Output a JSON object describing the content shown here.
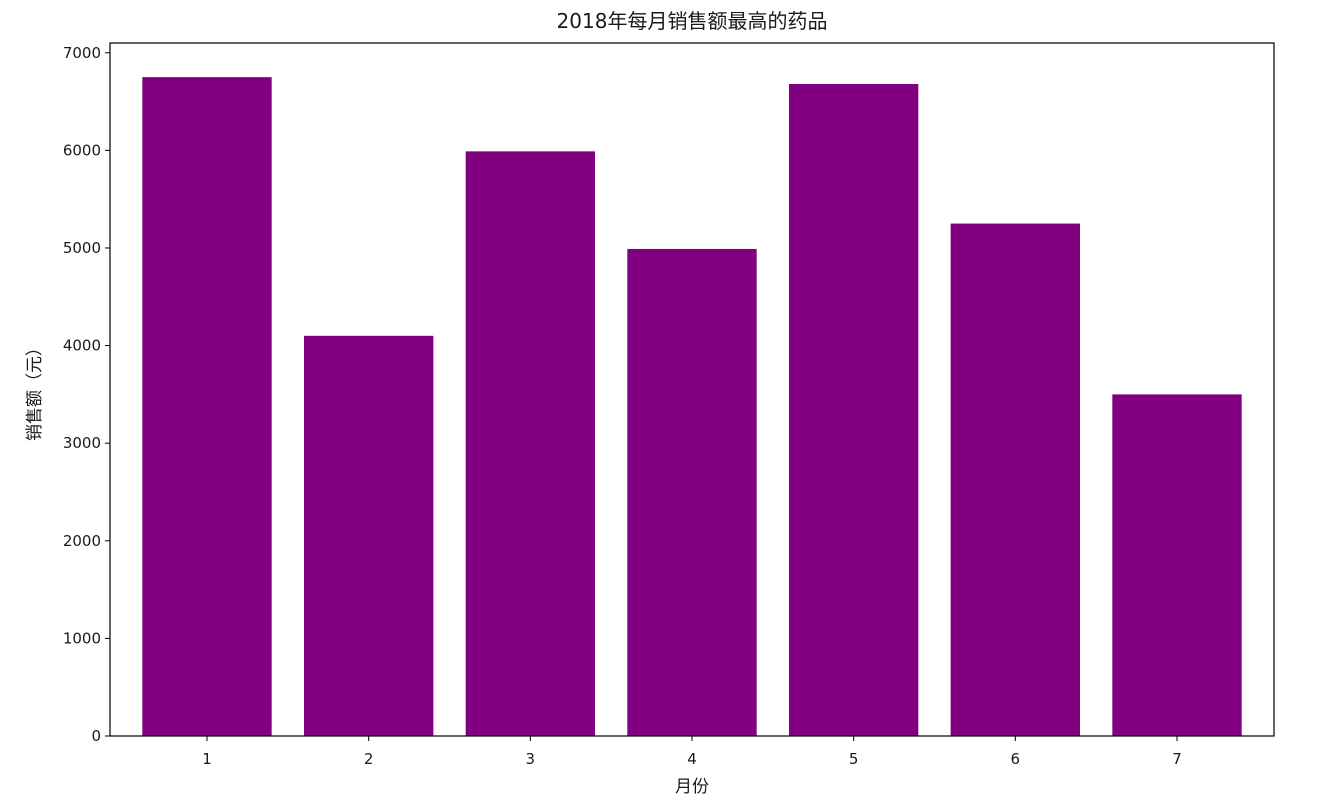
{
  "chart_data": {
    "type": "bar",
    "title": "2018年每月销售额最高的药品",
    "xlabel": "月份",
    "ylabel": "销售额（元）",
    "categories": [
      "1",
      "2",
      "3",
      "4",
      "5",
      "6",
      "7"
    ],
    "values": [
      6750,
      4100,
      5990,
      4990,
      6680,
      5250,
      3500
    ],
    "ylim": [
      0,
      7100
    ],
    "yticks": [
      0,
      1000,
      2000,
      3000,
      4000,
      5000,
      6000,
      7000
    ],
    "bar_color": "#800080",
    "grid": false,
    "legend": "none"
  }
}
